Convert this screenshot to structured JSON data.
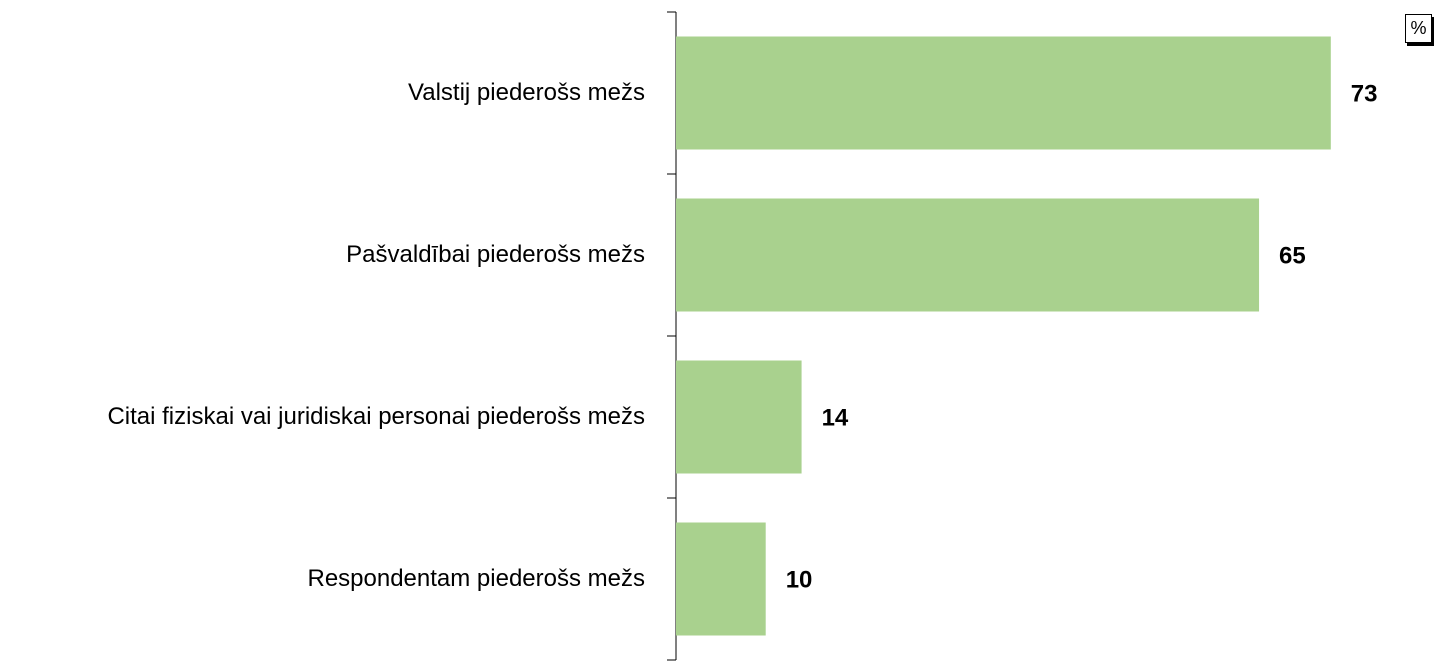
{
  "chart_data": {
    "type": "bar",
    "orientation": "horizontal",
    "unit": "%",
    "categories": [
      "Valstij piederošs mežs",
      "Pašvaldībai piederošs mežs",
      "Citai fiziskai vai juridiskai personai piederošs mežs",
      "Respondentam piederošs mežs"
    ],
    "values": [
      73,
      65,
      14,
      10
    ],
    "color": "#a9d18e"
  }
}
